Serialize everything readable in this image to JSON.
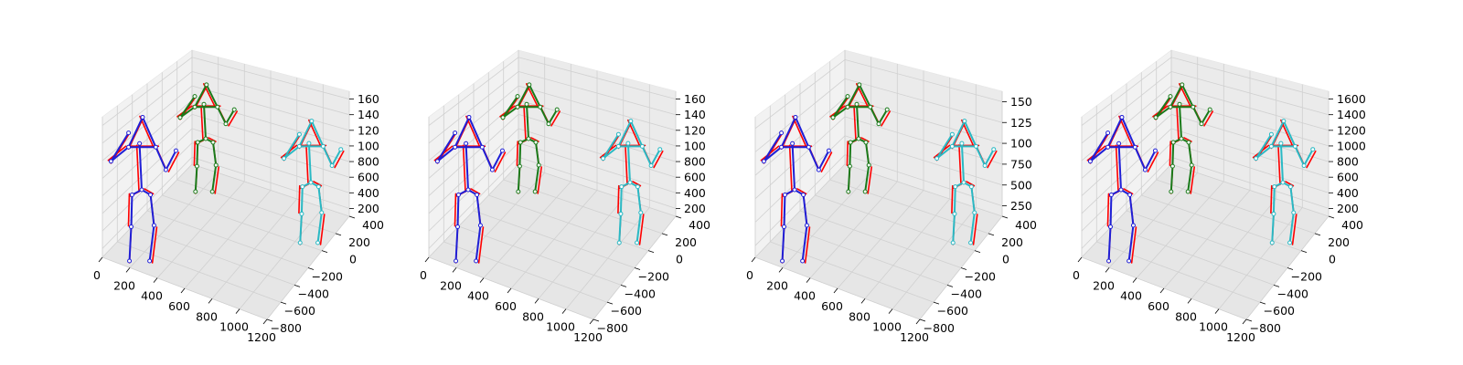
{
  "chart_data": {
    "type": "3d-line",
    "title": "",
    "legend": "none",
    "grid": true,
    "panels": [
      {
        "x_ticks": [
          "0",
          "200",
          "400",
          "600",
          "800",
          "1000",
          "1200"
        ],
        "y_ticks": [
          "400",
          "200",
          "0",
          "−200",
          "−400",
          "−600",
          "−800"
        ],
        "z_ticks": [
          "160",
          "140",
          "120",
          "100",
          "800",
          "600",
          "400",
          "200"
        ]
      },
      {
        "x_ticks": [
          "0",
          "200",
          "400",
          "600",
          "800",
          "1000",
          "1200"
        ],
        "y_ticks": [
          "400",
          "200",
          "0",
          "−200",
          "−400",
          "−600",
          "−800"
        ],
        "z_ticks": [
          "160",
          "140",
          "120",
          "100",
          "800",
          "600",
          "400",
          "200"
        ]
      },
      {
        "x_ticks": [
          "0",
          "200",
          "400",
          "600",
          "800",
          "1000",
          "1200"
        ],
        "y_ticks": [
          "400",
          "200",
          "0",
          "−200",
          "−400",
          "−600",
          "−800"
        ],
        "z_ticks": [
          "150",
          "125",
          "100",
          "750",
          "500",
          "250"
        ]
      },
      {
        "x_ticks": [
          "0",
          "200",
          "400",
          "600",
          "800",
          "1000",
          "1200"
        ],
        "y_ticks": [
          "400",
          "200",
          "0",
          "−200",
          "−400",
          "−600",
          "−800"
        ],
        "z_ticks": [
          "1600",
          "1400",
          "1200",
          "1000",
          "800",
          "600",
          "400",
          "200"
        ]
      }
    ],
    "colors": {
      "ground_truth": "#ff0000",
      "person_1": "#1f1fd6",
      "person_2": "#1a7a1a",
      "person_3": "#2ab9c4",
      "pane": "#f2f2f2",
      "grid": "#d0d0d0"
    }
  }
}
